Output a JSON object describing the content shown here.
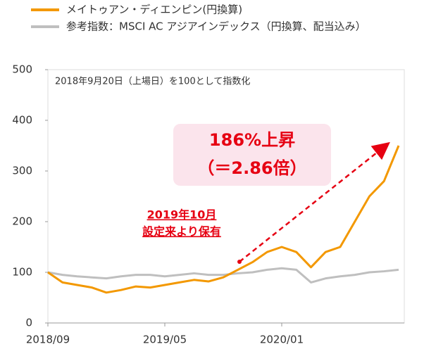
{
  "chart_data": {
    "type": "line",
    "note": "2018年9月20日（上場日）を100として指数化",
    "annotations": [
      "186%上昇",
      "（＝2.86倍）",
      "2019年10月",
      "設定来より保有"
    ],
    "x": [
      "2018/09",
      "2018/10",
      "2018/11",
      "2018/12",
      "2019/01",
      "2019/02",
      "2019/03",
      "2019/04",
      "2019/05",
      "2019/06",
      "2019/07",
      "2019/08",
      "2019/09",
      "2019/10",
      "2019/11",
      "2019/12",
      "2020/01",
      "2020/02",
      "2020/03",
      "2020/04",
      "2020/05",
      "2020/06",
      "2020/07",
      "2020/08",
      "2020/09"
    ],
    "series": [
      {
        "name": "メイトゥアン・ディエンピン(円換算)",
        "color": "#f39800",
        "values": [
          100,
          80,
          75,
          70,
          60,
          65,
          72,
          70,
          75,
          80,
          85,
          82,
          90,
          105,
          120,
          140,
          150,
          140,
          110,
          140,
          150,
          200,
          250,
          280,
          350
        ]
      },
      {
        "name": "参考指数：MSCI AC アジアインデックス（円換算、配当込み）",
        "color": "#bfbfbf",
        "values": [
          100,
          95,
          92,
          90,
          88,
          92,
          95,
          95,
          92,
          95,
          98,
          95,
          95,
          98,
          100,
          105,
          108,
          105,
          80,
          88,
          92,
          95,
          100,
          102,
          105
        ]
      }
    ],
    "ylim": [
      0,
      500
    ],
    "yticks": [
      0,
      100,
      200,
      300,
      400,
      500
    ],
    "xticks": [
      "2018/09",
      "2019/05",
      "2020/01"
    ]
  }
}
